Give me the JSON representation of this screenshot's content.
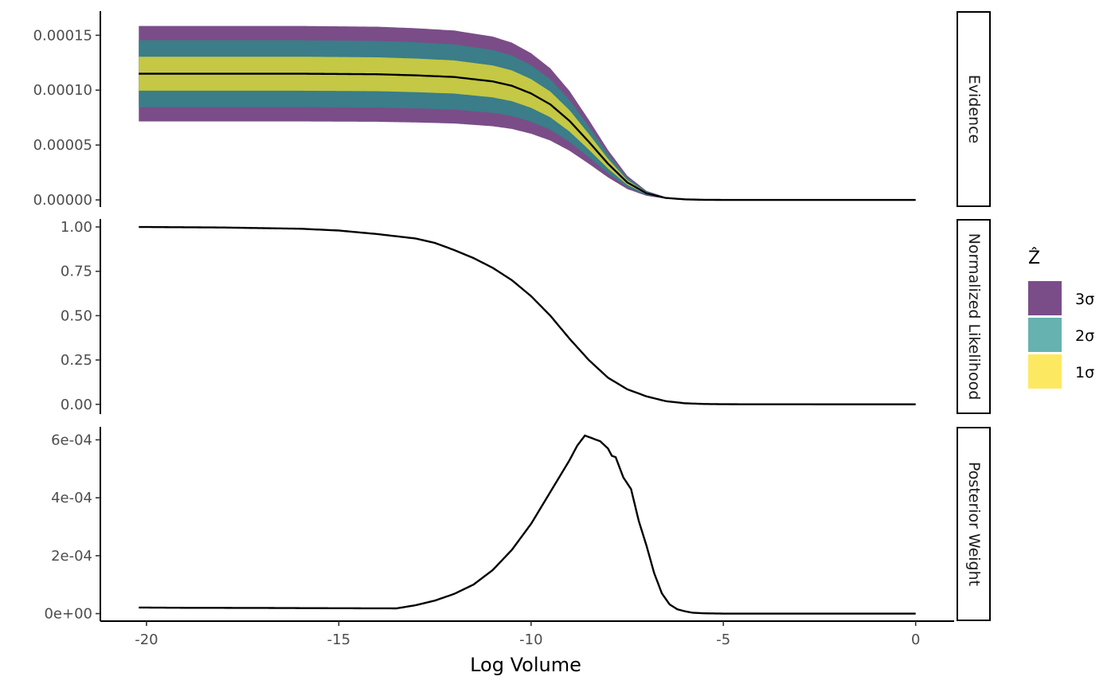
{
  "chart_data": {
    "type": "area",
    "xlabel": "Log Volume",
    "x_ticks": [
      -20,
      -15,
      -10,
      -5,
      0
    ],
    "x_tick_labels": [
      "-20",
      "-15",
      "-10",
      "-5",
      "0"
    ],
    "xlim": [
      -21.2,
      1.0
    ],
    "legend": {
      "title": "Ẑ",
      "position": "right",
      "entries": [
        {
          "label": "3σ",
          "color": "#7a4d88"
        },
        {
          "label": "2σ",
          "color": "#66b2b0"
        },
        {
          "label": "1σ",
          "color": "#fde961"
        }
      ]
    },
    "panels": [
      {
        "strip": "Evidence",
        "ylim": [
          -6.5e-06,
          0.000172
        ],
        "y_ticks": [
          0,
          5e-05,
          0.0001,
          0.00015
        ],
        "y_tick_labels": [
          "0.00000",
          "0.00005",
          "0.00010",
          "0.00015"
        ],
        "bands": [
          {
            "name": "3σ",
            "color": "#7a4d88",
            "half_width_at_start": 4.35e-05
          },
          {
            "name": "2σ",
            "color": "#3b7d88",
            "half_width_at_start": 3.05e-05
          },
          {
            "name": "1σ",
            "color": "#c4c844",
            "half_width_at_start": 1.55e-05
          }
        ],
        "series": [
          {
            "x": [
              -20.2,
              -18,
              -16,
              -14,
              -13,
              -12,
              -11,
              -10.5,
              -10,
              -9.5,
              -9,
              -8.5,
              -8,
              -7.5,
              -7,
              -6.5,
              -6,
              -5.5,
              -5,
              -4,
              -2,
              0
            ],
            "y": [
              0.000115,
              0.000115,
              0.000115,
              0.0001145,
              0.0001135,
              0.000112,
              0.000108,
              0.000104,
              9.7e-05,
              8.7e-05,
              7.2e-05,
              5.3e-05,
              3.3e-05,
              1.6e-05,
              6e-06,
              1.8e-06,
              5e-07,
              1e-07,
              0,
              0,
              0,
              0
            ]
          }
        ]
      },
      {
        "strip": "Normalized Likelihood",
        "ylim": [
          -0.055,
          1.045
        ],
        "y_ticks": [
          0,
          0.25,
          0.5,
          0.75,
          1.0
        ],
        "y_tick_labels": [
          "0.00",
          "0.25",
          "0.50",
          "0.75",
          "1.00"
        ],
        "series": [
          {
            "x": [
              -20.2,
              -18,
              -16,
              -15,
              -14,
              -13,
              -12.5,
              -12,
              -11.5,
              -11,
              -10.5,
              -10,
              -9.5,
              -9,
              -8.5,
              -8,
              -7.5,
              -7,
              -6.5,
              -6,
              -5.5,
              -5,
              -4,
              -2,
              0
            ],
            "y": [
              1.0,
              0.997,
              0.99,
              0.98,
              0.96,
              0.935,
              0.91,
              0.87,
              0.825,
              0.77,
              0.7,
              0.61,
              0.5,
              0.37,
              0.25,
              0.15,
              0.085,
              0.045,
              0.018,
              0.006,
              0.002,
              0.0007,
              0.0002,
              0,
              0
            ]
          }
        ]
      },
      {
        "strip": "Posterior Weight",
        "ylim": [
          -2.6e-05,
          0.000645
        ],
        "y_ticks": [
          0,
          0.0002,
          0.0004,
          0.0006
        ],
        "y_tick_labels": [
          "0e+00",
          "2e-04",
          "4e-04",
          "6e-04"
        ],
        "series": [
          {
            "x": [
              -20.2,
              -19,
              -17,
              -15,
              -13.5,
              -13,
              -12.5,
              -12,
              -11.5,
              -11,
              -10.5,
              -10,
              -9.5,
              -9,
              -8.8,
              -8.6,
              -8.4,
              -8.2,
              -8,
              -7.9,
              -7.8,
              -7.6,
              -7.4,
              -7.2,
              -7,
              -6.8,
              -6.6,
              -6.4,
              -6.2,
              -6,
              -5.8,
              -5.5,
              -5,
              -4,
              -2,
              0
            ],
            "y": [
              2.1e-05,
              2e-05,
              1.95e-05,
              1.85e-05,
              1.8e-05,
              2.9e-05,
              4.5e-05,
              6.8e-05,
              0.0001,
              0.00015,
              0.00022,
              0.00031,
              0.00042,
              0.00053,
              0.00058,
              0.000615,
              0.000605,
              0.000595,
              0.00057,
              0.000545,
              0.00054,
              0.00047,
              0.00043,
              0.00032,
              0.000235,
              0.00014,
              7e-05,
              3.2e-05,
              1.5e-05,
              8e-06,
              3e-06,
              1e-06,
              0,
              0,
              0,
              0
            ]
          }
        ]
      }
    ]
  }
}
